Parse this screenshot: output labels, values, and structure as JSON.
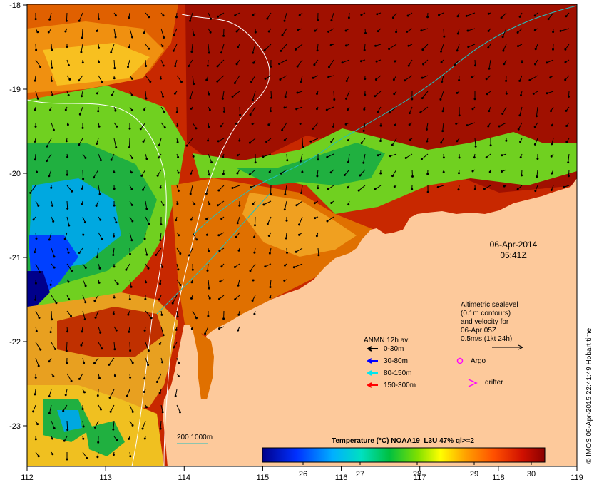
{
  "map": {
    "date": "06-Apr-2014",
    "time": "05:41Z",
    "lon_ticks": [
      "112",
      "113",
      "114",
      "115",
      "116",
      "117",
      "118",
      "119"
    ],
    "lat_ticks": [
      "-18",
      "-19",
      "-20",
      "-21",
      "-22",
      "-23"
    ],
    "altimetric": {
      "line1": "Altimetric sealevel",
      "line2": "(0.1m contours)",
      "line3": "and velocity for",
      "line4": "06-Apr 05Z",
      "line5": "0.5m/s (1kt 24h)"
    },
    "anmn": {
      "title": "ANMN 12h av.",
      "items": [
        {
          "label": "0-30m",
          "color": "#000000"
        },
        {
          "label": "30-80m",
          "color": "#0000ff"
        },
        {
          "label": "80-150m",
          "color": "#00e5ee"
        },
        {
          "label": "150-300m",
          "color": "#ff0000"
        }
      ]
    },
    "argo_label": "Argo",
    "drifter_label": "drifter",
    "argo_color": "#ff00ff",
    "isobath_label": "200  1000m",
    "isobath_color": "#20c0c0",
    "colorbar": {
      "title": "Temperature (°C) NOAA19_L3U 47% ql>=2",
      "ticks": [
        "26",
        "27",
        "28",
        "29",
        "30"
      ]
    },
    "credit": "© IMOS 06-Apr-2015 22:41:49 Hobart time",
    "land_color": "#fdc99b"
  }
}
